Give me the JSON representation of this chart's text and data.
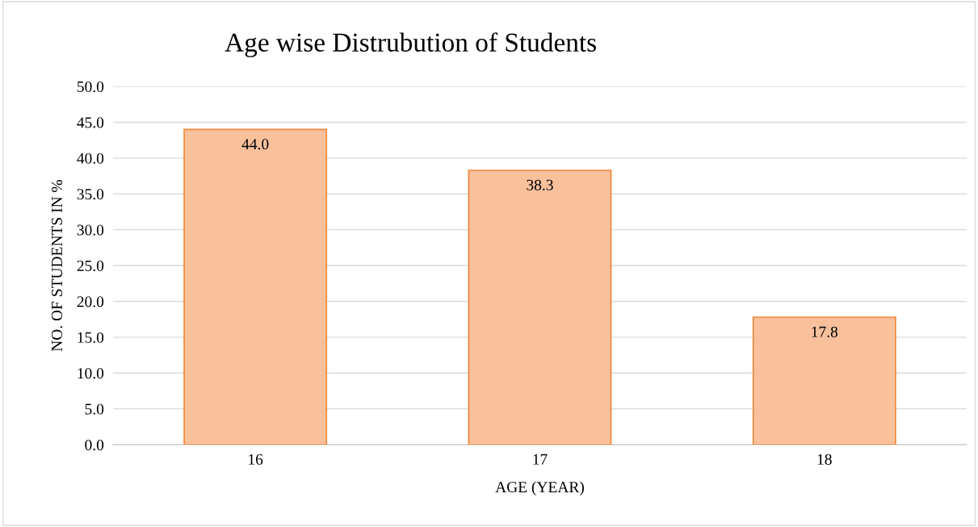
{
  "chart_data": {
    "type": "bar",
    "title": "Age wise Distrubution of Students",
    "xlabel": "AGE (YEAR)",
    "ylabel": "NO. OF STUDENTS IN %",
    "categories": [
      "16",
      "17",
      "18"
    ],
    "values": [
      44.0,
      38.3,
      17.8
    ],
    "color": "#f9c09c",
    "ylim": [
      0,
      50
    ],
    "yticks": [
      {
        "value": 0,
        "label": "0.0"
      },
      {
        "value": 5,
        "label": "5.0"
      },
      {
        "value": 10,
        "label": "10.0"
      },
      {
        "value": 15,
        "label": "15.0"
      },
      {
        "value": 20,
        "label": "20.0"
      },
      {
        "value": 25,
        "label": "25.0"
      },
      {
        "value": 30,
        "label": "30.0"
      },
      {
        "value": 35,
        "label": "35.0"
      },
      {
        "value": 40,
        "label": "40.0"
      },
      {
        "value": 45,
        "label": "45.0"
      },
      {
        "value": 50,
        "label": "50.0"
      }
    ],
    "grid": "y",
    "value_labels": [
      "44.0",
      "38.3",
      "17.8"
    ]
  }
}
